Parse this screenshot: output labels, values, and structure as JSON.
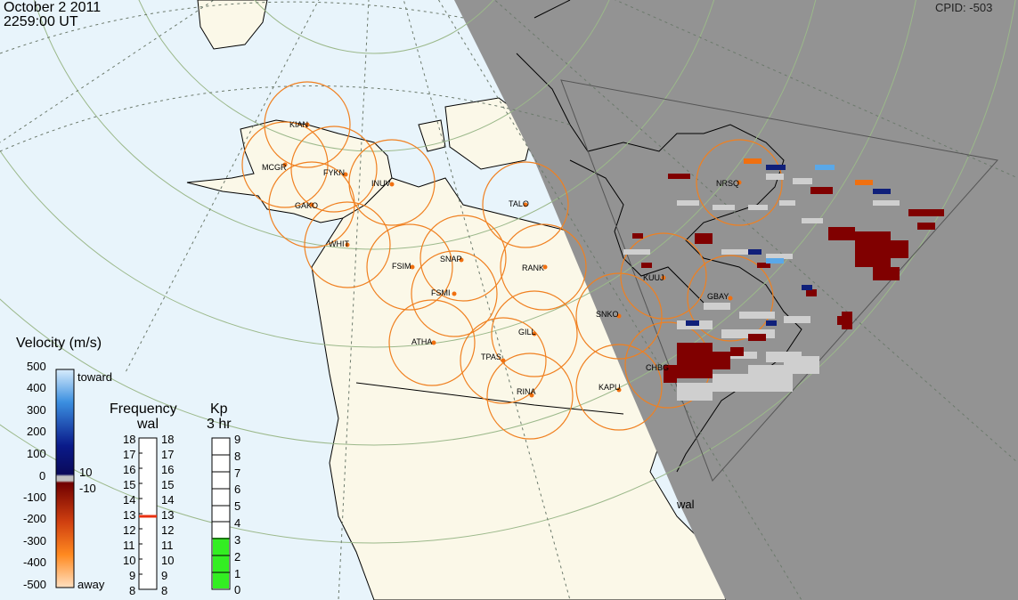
{
  "header": {
    "date": "October  2 2011",
    "time": "2259:00 UT",
    "cpid": "CPID:  -503"
  },
  "velocity_legend": {
    "title": "Velocity (m/s)",
    "toward": "toward",
    "away": "away",
    "ticks": [
      "500",
      "400",
      "300",
      "200",
      "100",
      "0",
      "-100",
      "-200",
      "-300",
      "-400",
      "-500"
    ],
    "inner_pos": "10",
    "inner_neg": "-10",
    "colors": {
      "toward_light": "#a8d8f8",
      "toward_mid": "#1e66cc",
      "toward_dark": "#0a1a7a",
      "away_dark": "#7a0000",
      "away_mid": "#ff6a00",
      "away_light": "#ffd2a6"
    }
  },
  "frequency_legend": {
    "title": "Frequency",
    "station": "wal",
    "ticks": [
      "18",
      "17",
      "16",
      "15",
      "14",
      "13",
      "12",
      "11",
      "10",
      "9",
      "8"
    ],
    "current": "13"
  },
  "kp_legend": {
    "title": "Kp",
    "subtitle": "3 hr",
    "ticks": [
      "9",
      "8",
      "7",
      "6",
      "5",
      "4",
      "3",
      "2",
      "1",
      "0"
    ],
    "level": 3
  },
  "stations": [
    "KIAN",
    "MCGR",
    "FYKN",
    "INUV",
    "GAKO",
    "TALO",
    "WHIT",
    "FSIM",
    "SNAP",
    "RANK",
    "FSMI",
    "NRSQ",
    "KUUJ",
    "GBAY",
    "SNKO",
    "ATHA",
    "GILL",
    "TPAS",
    "CHBG",
    "KAPU",
    "RINA"
  ],
  "radar_label": "wal"
}
